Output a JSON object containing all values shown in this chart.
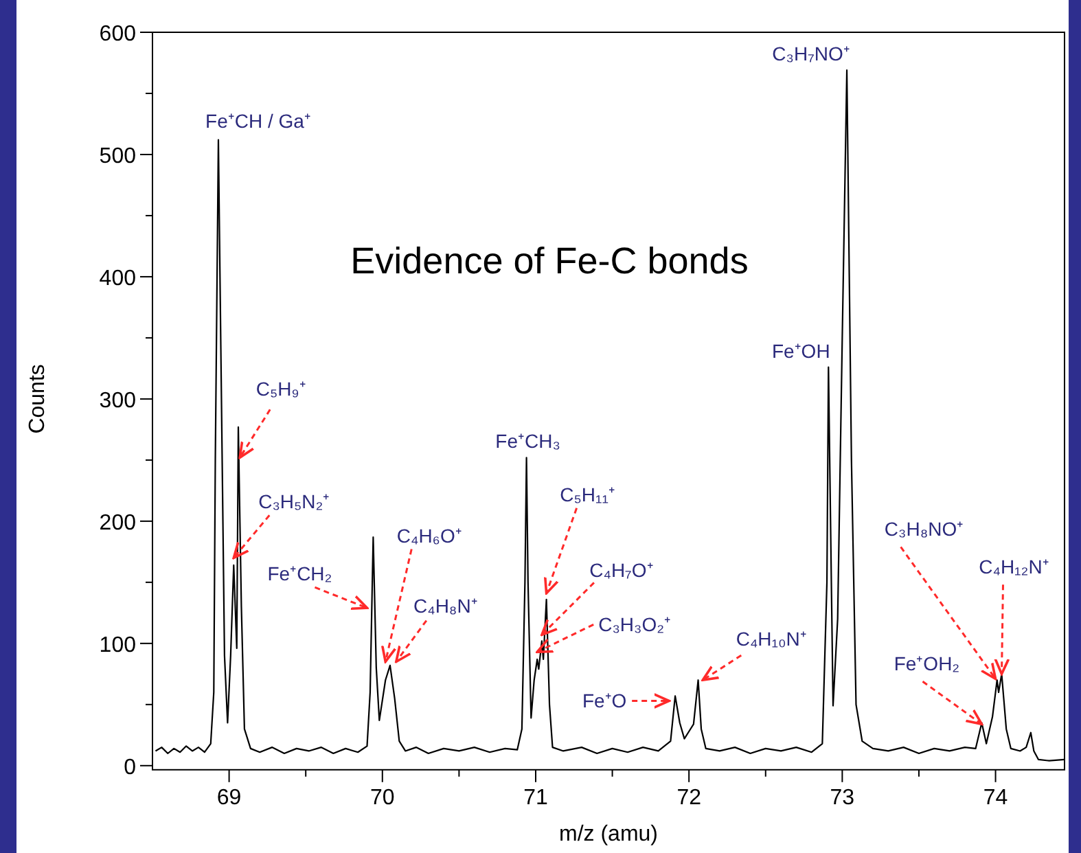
{
  "chart_data": {
    "type": "line",
    "title": "Evidence of Fe-C bonds",
    "xlabel": "m/z (amu)",
    "ylabel": "Counts",
    "xlim": [
      68.5,
      74.45
    ],
    "ylim": [
      0,
      600
    ],
    "xticks": [
      69,
      {
        "value": 69.5,
        "label": null
      },
      70,
      {
        "value": 70.5,
        "label": null
      },
      71,
      {
        "value": 71.5,
        "label": null
      },
      72,
      {
        "value": 72.5,
        "label": null
      },
      73,
      {
        "value": 73.5,
        "label": null
      },
      74
    ],
    "yticks": [
      0,
      {
        "value": 50,
        "label": null
      },
      100,
      {
        "value": 150,
        "label": null
      },
      200,
      {
        "value": 250,
        "label": null
      },
      300,
      {
        "value": 350,
        "label": null
      },
      400,
      {
        "value": 450,
        "label": null
      },
      500,
      {
        "value": 550,
        "label": null
      },
      600
    ],
    "x": [
      68.52,
      68.56,
      68.6,
      68.64,
      68.68,
      68.72,
      68.76,
      68.8,
      68.84,
      68.88,
      68.9,
      68.91,
      68.93,
      68.95,
      68.97,
      68.99,
      69.01,
      69.03,
      69.05,
      69.06,
      69.08,
      69.1,
      69.14,
      69.2,
      69.28,
      69.36,
      69.44,
      69.52,
      69.6,
      69.68,
      69.76,
      69.84,
      69.9,
      69.92,
      69.94,
      69.96,
      69.98,
      70.02,
      70.05,
      70.08,
      70.11,
      70.15,
      70.22,
      70.3,
      70.4,
      70.5,
      70.6,
      70.7,
      70.8,
      70.88,
      70.91,
      70.93,
      70.94,
      70.95,
      70.97,
      70.99,
      71.01,
      71.02,
      71.04,
      71.05,
      71.07,
      71.09,
      71.11,
      71.18,
      71.3,
      71.4,
      71.5,
      71.6,
      71.7,
      71.8,
      71.88,
      71.91,
      71.94,
      71.97,
      72.0,
      72.03,
      72.06,
      72.08,
      72.11,
      72.2,
      72.3,
      72.4,
      72.5,
      72.6,
      72.7,
      72.8,
      72.87,
      72.9,
      72.91,
      72.93,
      72.94,
      72.97,
      73.0,
      73.03,
      73.06,
      73.09,
      73.13,
      73.2,
      73.3,
      73.4,
      73.5,
      73.6,
      73.7,
      73.8,
      73.87,
      73.91,
      73.94,
      73.98,
      74.01,
      74.02,
      74.04,
      74.07,
      74.1,
      74.16,
      74.2,
      74.23,
      74.25,
      74.28,
      74.35,
      74.45
    ],
    "series": [
      {
        "color": "#000000",
        "values": [
          12,
          15,
          10,
          14,
          11,
          16,
          12,
          15,
          11,
          18,
          60,
          250,
          512,
          300,
          90,
          35,
          90,
          164,
          96,
          277,
          130,
          30,
          14,
          11,
          15,
          10,
          14,
          12,
          15,
          10,
          14,
          11,
          16,
          60,
          187,
          80,
          37,
          70,
          82,
          55,
          20,
          12,
          15,
          10,
          14,
          12,
          15,
          11,
          14,
          13,
          30,
          150,
          252,
          150,
          39,
          70,
          87,
          79,
          102,
          87,
          136,
          50,
          15,
          12,
          15,
          10,
          14,
          11,
          15,
          12,
          20,
          57,
          35,
          22,
          28,
          34,
          70,
          30,
          14,
          12,
          15,
          10,
          14,
          12,
          15,
          11,
          18,
          150,
          326,
          140,
          49,
          120,
          350,
          569,
          250,
          50,
          20,
          14,
          12,
          15,
          10,
          14,
          12,
          15,
          14,
          35,
          18,
          40,
          70,
          60,
          75,
          30,
          14,
          12,
          15,
          27,
          12,
          5,
          4,
          5
        ]
      }
    ],
    "annotations": [
      {
        "text": "Fe⁺CH / Ga⁺",
        "x": 68.93,
        "y": 512
      },
      {
        "text": "C₅H₉⁺",
        "x": 69.07,
        "y": 252
      },
      {
        "text": "C₃H₅N₂⁺",
        "x": 69.03,
        "y": 170
      },
      {
        "text": "Fe⁺CH₂",
        "x": 69.9,
        "y": 129
      },
      {
        "text": "C₄H₆O⁺",
        "x": 70.02,
        "y": 85
      },
      {
        "text": "C₄H₈N⁺",
        "x": 70.09,
        "y": 85
      },
      {
        "text": "Fe⁺CH₃",
        "x": 70.94,
        "y": 252
      },
      {
        "text": "C₅H₁₁⁺",
        "x": 71.07,
        "y": 141
      },
      {
        "text": "C₄H₇O⁺",
        "x": 71.04,
        "y": 107
      },
      {
        "text": "C₃H₃O₂⁺",
        "x": 71.01,
        "y": 93
      },
      {
        "text": "Fe⁺O",
        "x": 71.87,
        "y": 53
      },
      {
        "text": "C₄H₁₀N⁺",
        "x": 72.09,
        "y": 70
      },
      {
        "text": "Fe⁺OH",
        "x": 72.91,
        "y": 326
      },
      {
        "text": "C₃H₇NO⁺",
        "x": 73.03,
        "y": 569
      },
      {
        "text": "C₃H₈NO⁺",
        "x": 74.0,
        "y": 71
      },
      {
        "text": "C₄H₁₂N⁺",
        "x": 74.04,
        "y": 75
      },
      {
        "text": "Fe⁺OH₂",
        "x": 73.91,
        "y": 34
      }
    ]
  }
}
